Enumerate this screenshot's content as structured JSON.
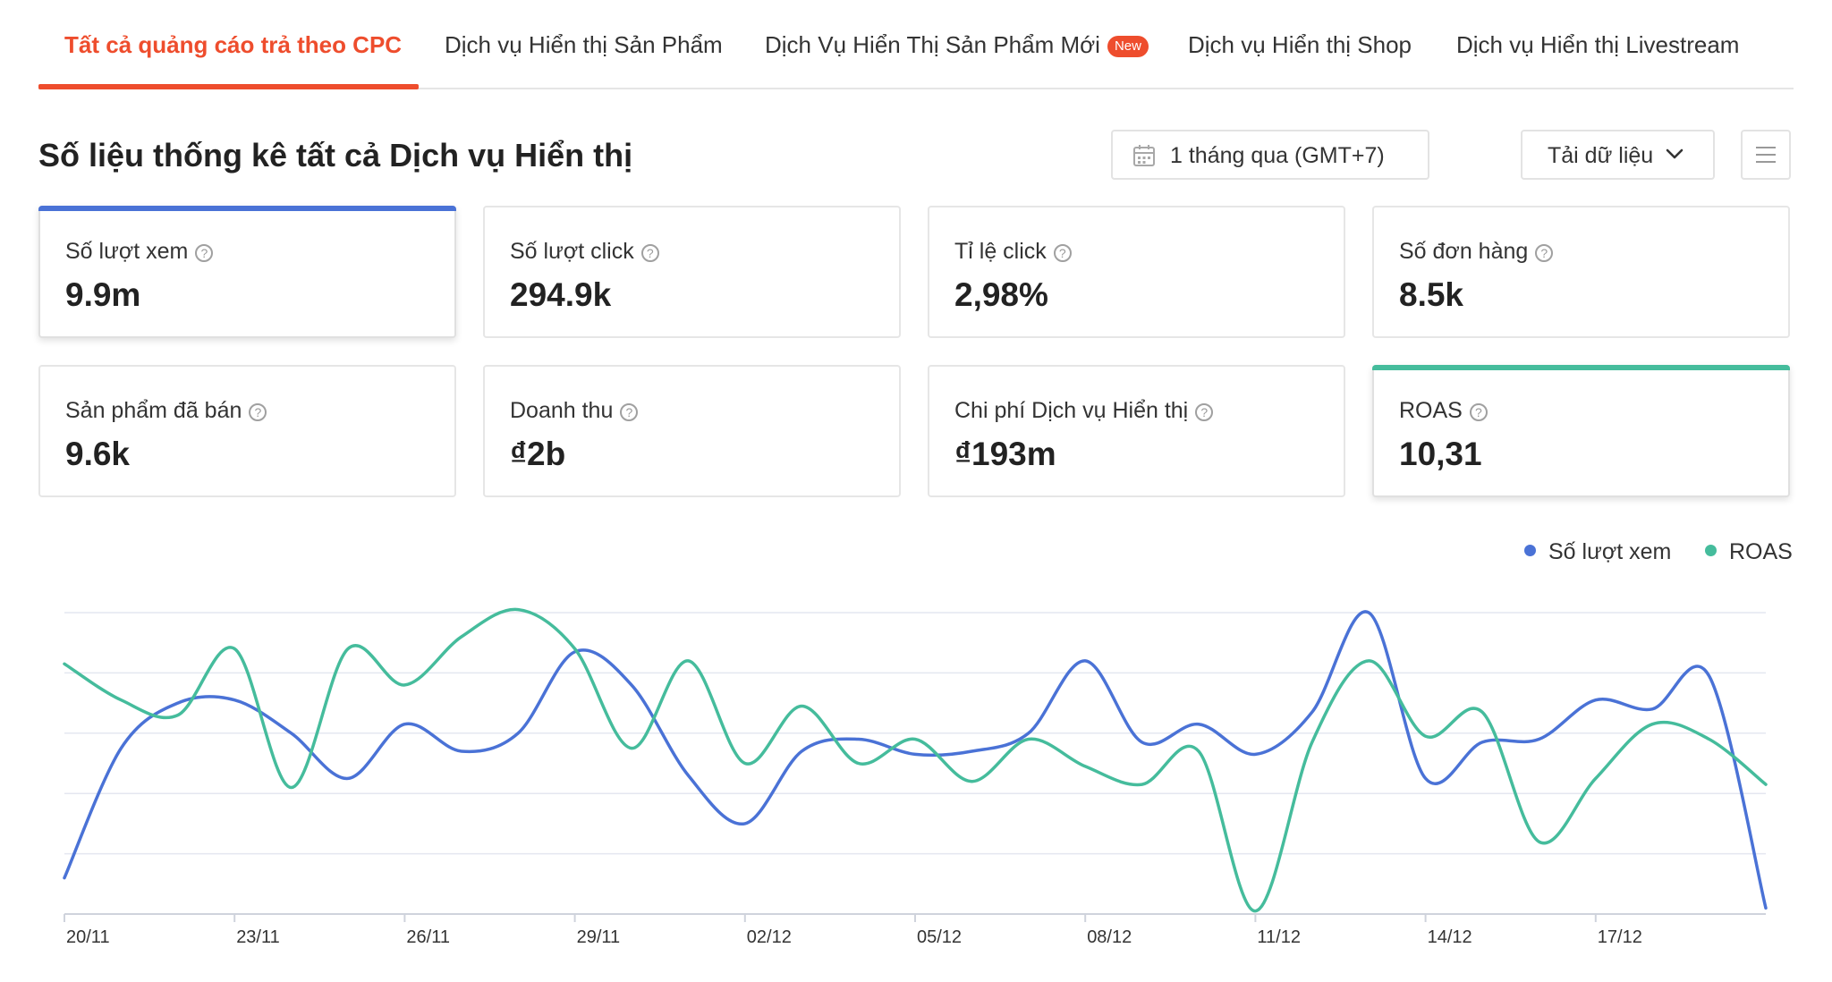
{
  "tabs": [
    {
      "label": "Tất cả quảng cáo trả theo CPC",
      "active": true
    },
    {
      "label": "Dịch vụ Hiển thị Sản Phẩm"
    },
    {
      "label": "Dịch Vụ Hiển Thị Sản Phẩm Mới",
      "badge": "New"
    },
    {
      "label": "Dịch vụ Hiển thị Shop"
    },
    {
      "label": "Dịch vụ Hiển thị Livestream"
    }
  ],
  "header": {
    "title": "Số liệu thống kê tất cả Dịch vụ Hiển thị",
    "date_range": "1 tháng qua (GMT+7)",
    "download_label": "Tải dữ liệu"
  },
  "metrics": [
    {
      "label": "Số lượt xem",
      "value": "9.9m",
      "selected": true,
      "color": "#4a72d6"
    },
    {
      "label": "Số lượt click",
      "value": "294.9k"
    },
    {
      "label": "Tỉ lệ click",
      "value": "2,98%"
    },
    {
      "label": "Số đơn hàng",
      "value": "8.5k"
    },
    {
      "label": "Sản phẩm đã bán",
      "value": "9.6k"
    },
    {
      "label": "Doanh thu",
      "value": "₫2b"
    },
    {
      "label": "Chi phí Dịch vụ Hiển thị",
      "value": "₫193m"
    },
    {
      "label": "ROAS",
      "value": "10,31",
      "selected": true,
      "color": "#45bc9c"
    }
  ],
  "icons": {
    "help": "?",
    "calendar": "calendar-icon",
    "chevron": "chevron-down-icon",
    "menu": "menu-icon"
  },
  "colors": {
    "accent": "#ee4d2d",
    "views": "#4a72d6",
    "roas": "#45bc9c"
  },
  "chart_data": {
    "type": "line",
    "title": "",
    "xlabel": "",
    "ylabel": "",
    "grid": true,
    "legend_position": "top-right",
    "y_scale": "relative, no tick labels (each series scaled to its own range)",
    "x_tick_labels": [
      "20/11",
      "23/11",
      "26/11",
      "29/11",
      "02/12",
      "05/12",
      "08/12",
      "11/12",
      "14/12",
      "17/12"
    ],
    "x": [
      "20/11",
      "21/11",
      "22/11",
      "23/11",
      "24/11",
      "25/11",
      "26/11",
      "27/11",
      "28/11",
      "29/11",
      "30/11",
      "01/12",
      "02/12",
      "03/12",
      "04/12",
      "05/12",
      "06/12",
      "07/12",
      "08/12",
      "09/12",
      "10/12",
      "11/12",
      "12/12",
      "13/12",
      "14/12",
      "15/12",
      "16/12",
      "17/12",
      "18/12",
      "19/12",
      "20/12"
    ],
    "ylim": [
      0,
      100
    ],
    "series": [
      {
        "name": "Số lượt xem",
        "color": "#4a72d6",
        "values": [
          12,
          55,
          70,
          71,
          60,
          45,
          63,
          54,
          60,
          87,
          76,
          46,
          30,
          54,
          58,
          53,
          54,
          60,
          84,
          57,
          63,
          53,
          67,
          100,
          45,
          57,
          58,
          71,
          68,
          79,
          2
        ]
      },
      {
        "name": "ROAS",
        "color": "#45bc9c",
        "values": [
          83,
          71,
          66,
          88,
          42,
          88,
          76,
          92,
          101,
          88,
          55,
          84,
          50,
          69,
          50,
          58,
          44,
          58,
          49,
          43,
          54,
          1,
          57,
          84,
          59,
          67,
          24,
          45,
          63,
          58,
          43
        ]
      }
    ]
  }
}
